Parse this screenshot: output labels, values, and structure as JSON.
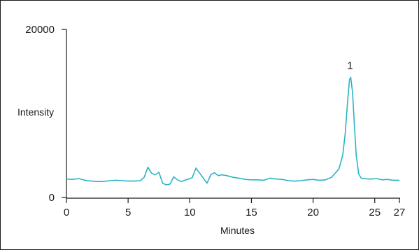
{
  "chart_data": {
    "type": "line",
    "ylabel": "Intensity",
    "xlabel": "Minutes",
    "xlim": [
      0,
      27
    ],
    "ylim": [
      0,
      20000
    ],
    "x_ticks": [
      0,
      5,
      10,
      15,
      20,
      25,
      27
    ],
    "y_ticks": [
      0,
      20000
    ],
    "line_color": "#2bb3c6",
    "grid": false,
    "annotations": [
      {
        "text": "1",
        "x": 23.0,
        "y": 14300
      }
    ],
    "series": [
      {
        "x": [
          0,
          0.5,
          1,
          1.5,
          2,
          2.5,
          3,
          3.5,
          4,
          4.5,
          5,
          5.5,
          6,
          6.3,
          6.6,
          6.9,
          7.2,
          7.5,
          7.8,
          8.1,
          8.4,
          8.7,
          9,
          9.3,
          9.6,
          9.9,
          10.2,
          10.5,
          10.8,
          11.1,
          11.4,
          11.7,
          12,
          12.3,
          12.6,
          13,
          13.5,
          14,
          14.5,
          15,
          15.5,
          16,
          16.5,
          17,
          17.5,
          18,
          18.5,
          19,
          19.5,
          20,
          20.5,
          21,
          21.5,
          21.8,
          22.1,
          22.4,
          22.6,
          22.8,
          22.95,
          23.05,
          23.2,
          23.35,
          23.5,
          23.7,
          23.9,
          24.1,
          24.4,
          24.8,
          25.2,
          25.6,
          26,
          26.5,
          27
        ],
        "y": [
          2200,
          2150,
          2250,
          2050,
          1950,
          1900,
          1900,
          2000,
          2050,
          2000,
          1950,
          1950,
          2000,
          2400,
          3600,
          2900,
          2700,
          3000,
          1700,
          1500,
          1600,
          2450,
          2100,
          1900,
          2050,
          2200,
          2350,
          3500,
          2900,
          2300,
          1700,
          2700,
          2950,
          2600,
          2700,
          2600,
          2400,
          2300,
          2150,
          2100,
          2100,
          2050,
          2300,
          2200,
          2150,
          2000,
          1950,
          2000,
          2100,
          2150,
          2050,
          2100,
          2400,
          2900,
          3400,
          5000,
          7500,
          11500,
          14000,
          14300,
          12500,
          8500,
          5000,
          2800,
          2300,
          2250,
          2200,
          2200,
          2250,
          2100,
          2150,
          2050,
          2050
        ]
      }
    ]
  }
}
